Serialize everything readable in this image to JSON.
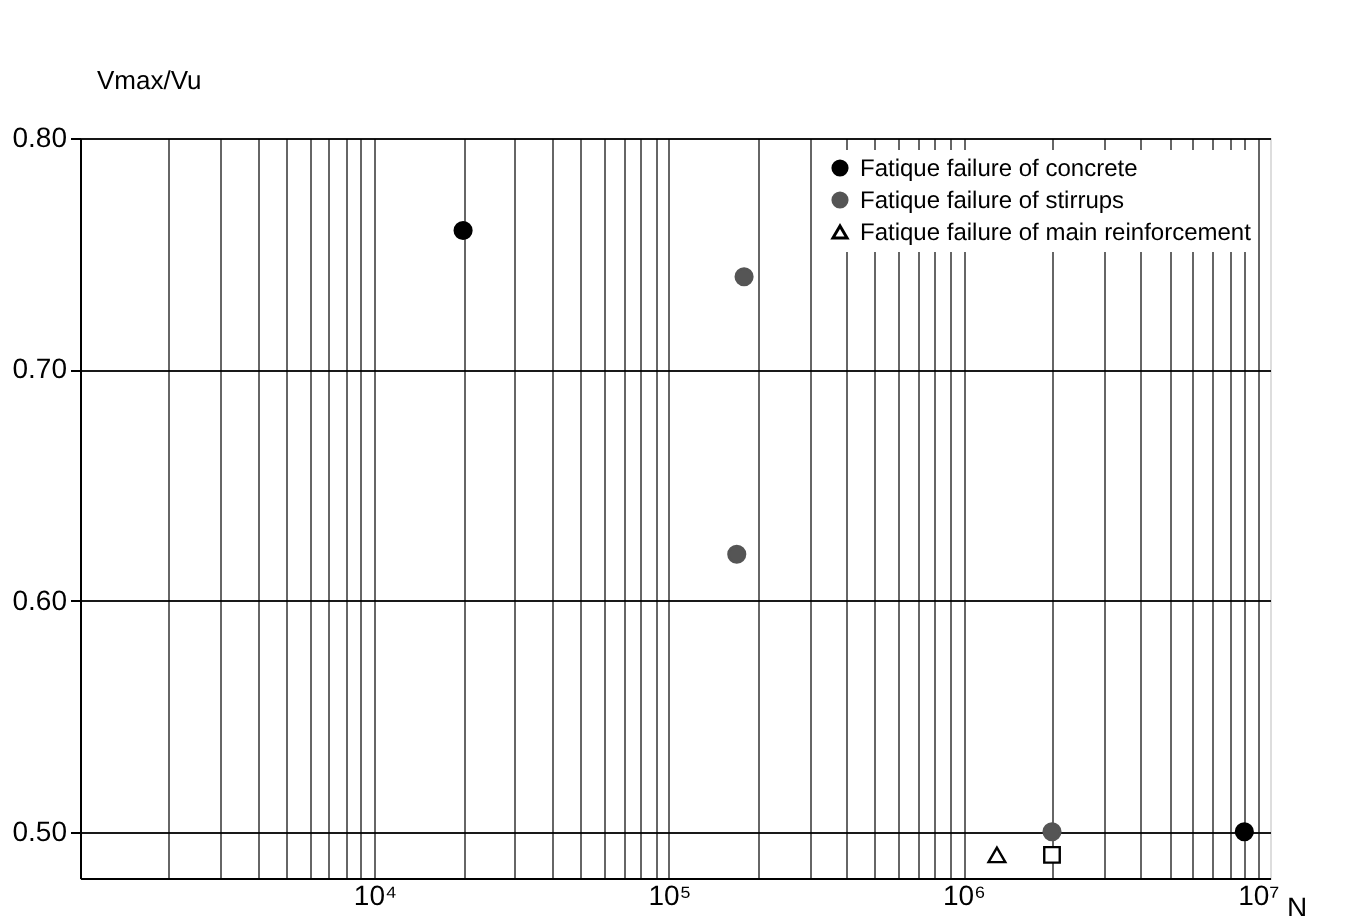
{
  "chart_data": {
    "type": "scatter",
    "xlabel": "N",
    "ylabel": "Vmax/Vu",
    "log": "x",
    "xlim": [
      1000,
      11000000
    ],
    "ylim": [
      0.48,
      0.8
    ],
    "xticks": [
      {
        "value": 2000,
        "label": null
      },
      {
        "value": 3000,
        "label": null
      },
      {
        "value": 4000,
        "label": null
      },
      {
        "value": 5000,
        "label": null
      },
      {
        "value": 6000,
        "label": null
      },
      {
        "value": 7000,
        "label": null
      },
      {
        "value": 8000,
        "label": null
      },
      {
        "value": 9000,
        "label": null
      },
      {
        "value": 10000,
        "label": "10⁴"
      },
      {
        "value": 20000,
        "label": null
      },
      {
        "value": 30000,
        "label": null
      },
      {
        "value": 40000,
        "label": null
      },
      {
        "value": 50000,
        "label": null
      },
      {
        "value": 60000,
        "label": null
      },
      {
        "value": 70000,
        "label": null
      },
      {
        "value": 80000,
        "label": null
      },
      {
        "value": 90000,
        "label": null
      },
      {
        "value": 100000,
        "label": "10⁵"
      },
      {
        "value": 200000,
        "label": null
      },
      {
        "value": 300000,
        "label": null
      },
      {
        "value": 400000,
        "label": null
      },
      {
        "value": 500000,
        "label": null
      },
      {
        "value": 600000,
        "label": null
      },
      {
        "value": 700000,
        "label": null
      },
      {
        "value": 800000,
        "label": null
      },
      {
        "value": 900000,
        "label": null
      },
      {
        "value": 1000000,
        "label": "10⁶"
      },
      {
        "value": 2000000,
        "label": null
      },
      {
        "value": 3000000,
        "label": null
      },
      {
        "value": 4000000,
        "label": null
      },
      {
        "value": 5000000,
        "label": null
      },
      {
        "value": 6000000,
        "label": null
      },
      {
        "value": 7000000,
        "label": null
      },
      {
        "value": 8000000,
        "label": null
      },
      {
        "value": 9000000,
        "label": null
      },
      {
        "value": 10000000,
        "label": "10⁷"
      }
    ],
    "yticks": [
      {
        "value": 0.5,
        "label": "0.50"
      },
      {
        "value": 0.6,
        "label": "0.60"
      },
      {
        "value": 0.7,
        "label": "0.70"
      },
      {
        "value": 0.8,
        "label": "0.80"
      }
    ],
    "grid": true,
    "legend": "top right",
    "series": [
      {
        "name": "Fatique failure of concrete",
        "color": "#000000",
        "marker": "circle",
        "x": [
          20000,
          9000000
        ],
        "values": [
          0.76,
          0.5
        ]
      },
      {
        "name": "Fatique failure of stirrups",
        "color": "#555555",
        "marker": "circle",
        "x": [
          180000,
          170000,
          2000000
        ],
        "values": [
          0.74,
          0.62,
          0.5
        ]
      },
      {
        "name": "Fatique failure of main reinforcement",
        "color": "#000000",
        "marker": "triangle",
        "x": [
          1300000
        ],
        "values": [
          0.49
        ]
      },
      {
        "color": "#000000",
        "marker": "square",
        "x": [
          2000000
        ],
        "values": [
          0.49
        ]
      }
    ]
  }
}
